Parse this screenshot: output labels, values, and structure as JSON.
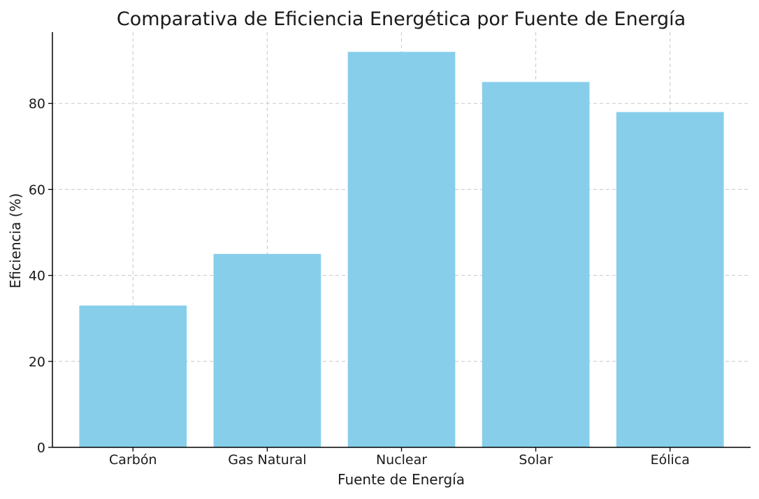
{
  "chart_data": {
    "type": "bar",
    "title": "Comparativa de Eficiencia Energética por Fuente de Energía",
    "xlabel": "Fuente de Energía",
    "ylabel": "Eficiencia (%)",
    "categories": [
      "Carbón",
      "Gas Natural",
      "Nuclear",
      "Solar",
      "Eólica"
    ],
    "values": [
      33,
      45,
      92,
      85,
      78
    ],
    "ylim": [
      0,
      96.6
    ],
    "yticks": [
      0,
      20,
      40,
      60,
      80
    ],
    "grid": true,
    "bar_color": "#87CEEB"
  }
}
